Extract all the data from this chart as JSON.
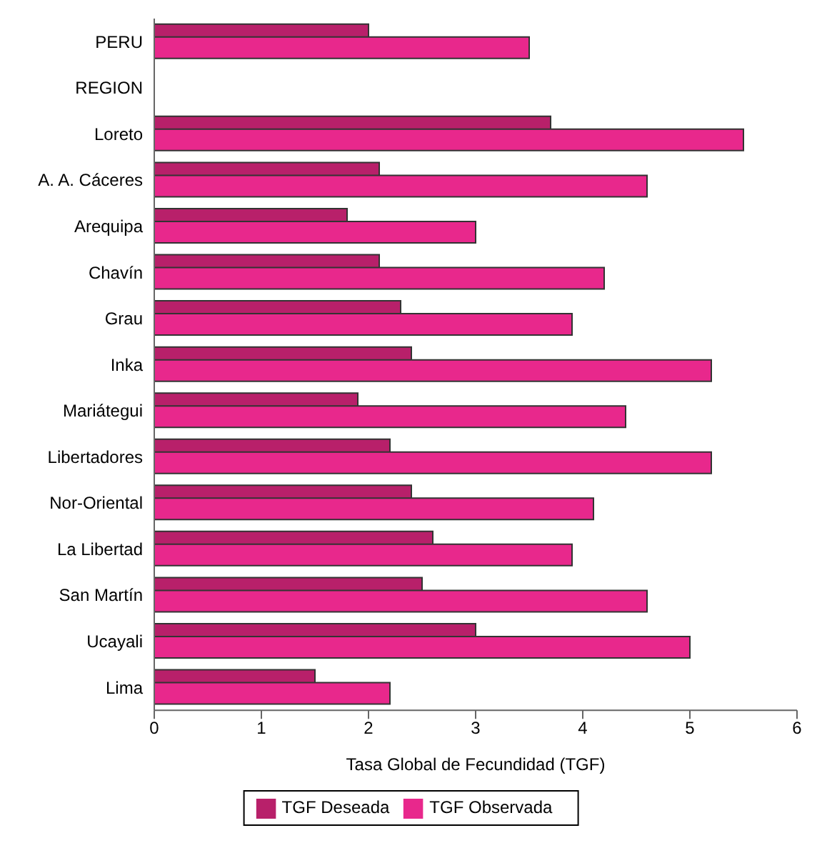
{
  "chart_data": {
    "type": "bar",
    "orientation": "horizontal",
    "xlabel": "Tasa Global de Fecundidad (TGF)",
    "categories": [
      "PERU",
      "REGION",
      "Loreto",
      "A. A. Cáceres",
      "Arequipa",
      "Chavín",
      "Grau",
      "Inka",
      "Mariátegui",
      "Libertadores",
      "Nor-Oriental",
      "La Libertad",
      "San Martín",
      "Ucayali",
      "Lima"
    ],
    "series": [
      {
        "name": "TGF Deseada",
        "color": "#b8206a",
        "values": [
          2.0,
          null,
          3.7,
          2.1,
          1.8,
          2.1,
          2.3,
          2.4,
          1.9,
          2.2,
          2.4,
          2.6,
          2.5,
          3.0,
          1.5
        ]
      },
      {
        "name": "TGF Observada",
        "color": "#e8288c",
        "values": [
          3.5,
          null,
          5.5,
          4.6,
          3.0,
          4.2,
          3.9,
          5.2,
          4.4,
          5.2,
          4.1,
          3.9,
          4.6,
          5.0,
          2.2
        ]
      }
    ],
    "xlim": [
      0,
      6
    ],
    "xticks": [
      0,
      1,
      2,
      3,
      4,
      5,
      6
    ],
    "grid": false,
    "legend": "bottom"
  }
}
